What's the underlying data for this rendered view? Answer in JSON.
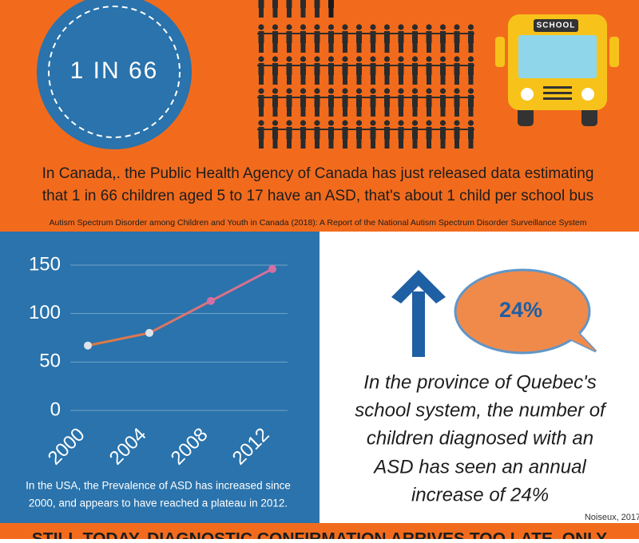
{
  "header": {
    "stat": "1 IN 66",
    "bus_sign": "SCHOOL",
    "lines": [
      "In Canada,. the Public Health Agency of Canada has just released data estimating",
      "that 1 in 66 children aged 5 to 17 have an ASD, that's about 1 child per school bus"
    ],
    "source": "Autism Spectrum Disorder among Children and Youth in Canada (2018): A Report of the National Autism Spectrum Disorder Surveillance System"
  },
  "chart_data": {
    "type": "line",
    "categories": [
      "2000",
      "2004",
      "2008",
      "2012"
    ],
    "values": [
      67,
      80,
      113,
      146
    ],
    "ylim": [
      0,
      150
    ],
    "yticks": [
      0,
      50,
      100,
      150
    ],
    "grid": true,
    "colors": [
      "#e07b39",
      "#d56fa3"
    ],
    "caption": [
      "In the USA, the Prevalence of ASD has increased since",
      "2000, and appears to have reached a plateau in 2012."
    ]
  },
  "quebec": {
    "badge": "24%",
    "lines": [
      "In the province of Quebec's",
      "school system, the number of",
      "children diagnosed with an",
      "ASD has seen an annual",
      "increase of 24%"
    ],
    "source": "Noiseux, 2017"
  },
  "footer": {
    "text": "STILL TODAY, DIAGNOSTIC CONFIRMATION ARRIVES TOO LATE, ONLY"
  }
}
